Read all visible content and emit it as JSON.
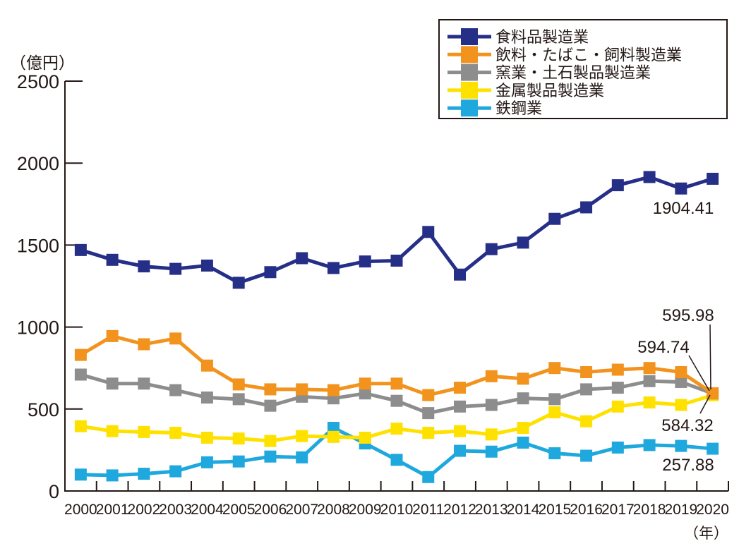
{
  "page": {
    "background": "#ffffff",
    "text_color": "#231815"
  },
  "chart_data": {
    "type": "line",
    "title": "",
    "y_unit": "（億円）",
    "x_unit": "（年）",
    "ylim": [
      0,
      2500
    ],
    "y_ticks": [
      0,
      500,
      1000,
      1500,
      2000,
      2500
    ],
    "grid": false,
    "legend_position": "top-right",
    "categories": [
      "2000",
      "2001",
      "2002",
      "2003",
      "2004",
      "2005",
      "2006",
      "2007",
      "2008",
      "2009",
      "2010",
      "2011",
      "2012",
      "2013",
      "2014",
      "2015",
      "2016",
      "2017",
      "2018",
      "2019",
      "2020"
    ],
    "series": [
      {
        "id": "food-products",
        "label": "食料品製造業",
        "color": "#262f87",
        "values": [
          1470,
          1410,
          1370,
          1355,
          1375,
          1270,
          1335,
          1420,
          1360,
          1400,
          1405,
          1580,
          1320,
          1475,
          1515,
          1660,
          1730,
          1865,
          1915,
          1845,
          1904.41
        ]
      },
      {
        "id": "beverages-tobacco-feed",
        "label": "飲料・たばこ・飼料製造業",
        "color": "#f2931e",
        "values": [
          830,
          945,
          895,
          930,
          765,
          650,
          620,
          620,
          615,
          655,
          655,
          585,
          630,
          700,
          685,
          750,
          725,
          740,
          750,
          725,
          595.98
        ]
      },
      {
        "id": "ceramics-stone-clay",
        "label": "窯業・土石製品製造業",
        "color": "#8d8d8d",
        "values": [
          710,
          655,
          655,
          615,
          570,
          560,
          520,
          575,
          565,
          595,
          550,
          475,
          515,
          525,
          565,
          560,
          620,
          630,
          670,
          665,
          594.74
        ]
      },
      {
        "id": "metal-products",
        "label": "金属製品製造業",
        "color": "#ffe100",
        "values": [
          395,
          365,
          360,
          355,
          325,
          320,
          305,
          335,
          330,
          325,
          380,
          355,
          365,
          345,
          385,
          480,
          425,
          515,
          540,
          525,
          584.32
        ]
      },
      {
        "id": "iron-steel",
        "label": "鉄鋼業",
        "color": "#1fa8dd",
        "values": [
          100,
          95,
          105,
          120,
          175,
          180,
          210,
          205,
          385,
          290,
          190,
          85,
          245,
          240,
          295,
          230,
          215,
          265,
          280,
          275,
          257.88
        ]
      }
    ],
    "end_labels": [
      {
        "series": "食料品製造業",
        "text": "1904.41",
        "x": 968,
        "y": 303,
        "leader": null
      },
      {
        "series": "飲料・たばこ・飼料製造業",
        "text": "595.98",
        "x": 975,
        "y": 455,
        "leader": [
          1006,
          460,
          1007,
          552
        ]
      },
      {
        "series": "窯業・土石製品製造業",
        "text": "594.74",
        "x": 940,
        "y": 500,
        "leader": [
          976,
          504,
          1005,
          554
        ]
      },
      {
        "series": "金属製品製造業",
        "text": "584.32",
        "x": 974,
        "y": 611,
        "leader": [
          992,
          586,
          1006,
          560
        ]
      },
      {
        "series": "鉄鋼業",
        "text": "257.88",
        "x": 975,
        "y": 667,
        "leader": null
      }
    ]
  },
  "legend": {
    "border_color": "#231815",
    "items": [
      {
        "id": "food-products",
        "label": "食料品製造業",
        "color": "#262f87"
      },
      {
        "id": "beverages-tobacco-feed",
        "label": "飲料・たばこ・飼料製造業",
        "color": "#f2931e"
      },
      {
        "id": "ceramics-stone-clay",
        "label": "窯業・土石製品製造業",
        "color": "#8d8d8d"
      },
      {
        "id": "metal-products",
        "label": "金属製品製造業",
        "color": "#ffe100"
      },
      {
        "id": "iron-steel",
        "label": "鉄鋼業",
        "color": "#1fa8dd"
      }
    ]
  }
}
